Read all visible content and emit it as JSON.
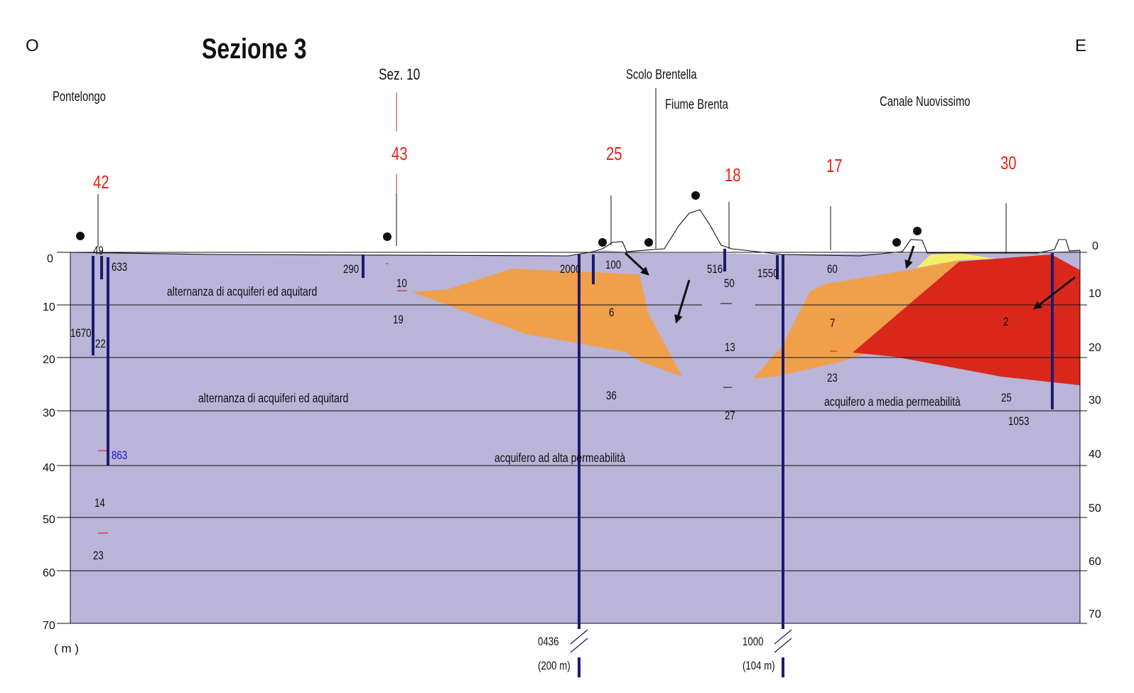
{
  "header": {
    "title": "Sezione 3",
    "west": "O",
    "east": "E"
  },
  "places": {
    "pontelongo": "Pontelongo",
    "sez10": "Sez. 10",
    "scolo": "Scolo Brentella",
    "brenta": "Fiume Brenta",
    "canale": "Canale Nuovissimo"
  },
  "axis": {
    "unit": "( m )",
    "left_ticks": [
      "0",
      "10",
      "20",
      "30",
      "40",
      "50",
      "60",
      "70"
    ],
    "right_ticks": [
      "0",
      "10",
      "20",
      "30",
      "40",
      "50",
      "60",
      "70"
    ]
  },
  "layers": {
    "l1": "alternanza di acquiferi  ed aquitard",
    "l2": "alternanza di acquiferi  ed aquitard",
    "l3": "acquifero ad alta permeabilità",
    "l4": "acquifero  a media permeabilità"
  },
  "sample_codes": {
    "s42": "42",
    "s43": "43",
    "s25": "25",
    "s18": "18",
    "s17": "17",
    "s30": "30"
  },
  "values": {
    "v49": "49",
    "v633": "633",
    "v1670": "1670",
    "v22": "22",
    "v863": "863",
    "v14": "14",
    "v23a": "23",
    "v290": "290",
    "v10": "10",
    "v19": "19",
    "v2000": "2000",
    "v100": "100",
    "v6": "6",
    "v36": "36",
    "v516": "516",
    "v50": "50",
    "v13": "13",
    "v27": "27",
    "v1550": "1550",
    "v60": "60",
    "v7": "7",
    "v23b": "23",
    "v2": "2",
    "v25": "25",
    "v1053": "1053"
  },
  "breaks": {
    "b1_val": "0436",
    "b1_dist": "(200 m)",
    "b2_val": "1000",
    "b2_dist": "(104 m)"
  },
  "colors": {
    "background_layer": "#b9b4d8",
    "orange_layer": "#f0a04b",
    "red_layer": "#d9271c",
    "yellow_layer": "#f5ee6a",
    "well": "#1e1a6e",
    "sample_code": "#e8231a",
    "highlight_value": "#1414cc"
  }
}
